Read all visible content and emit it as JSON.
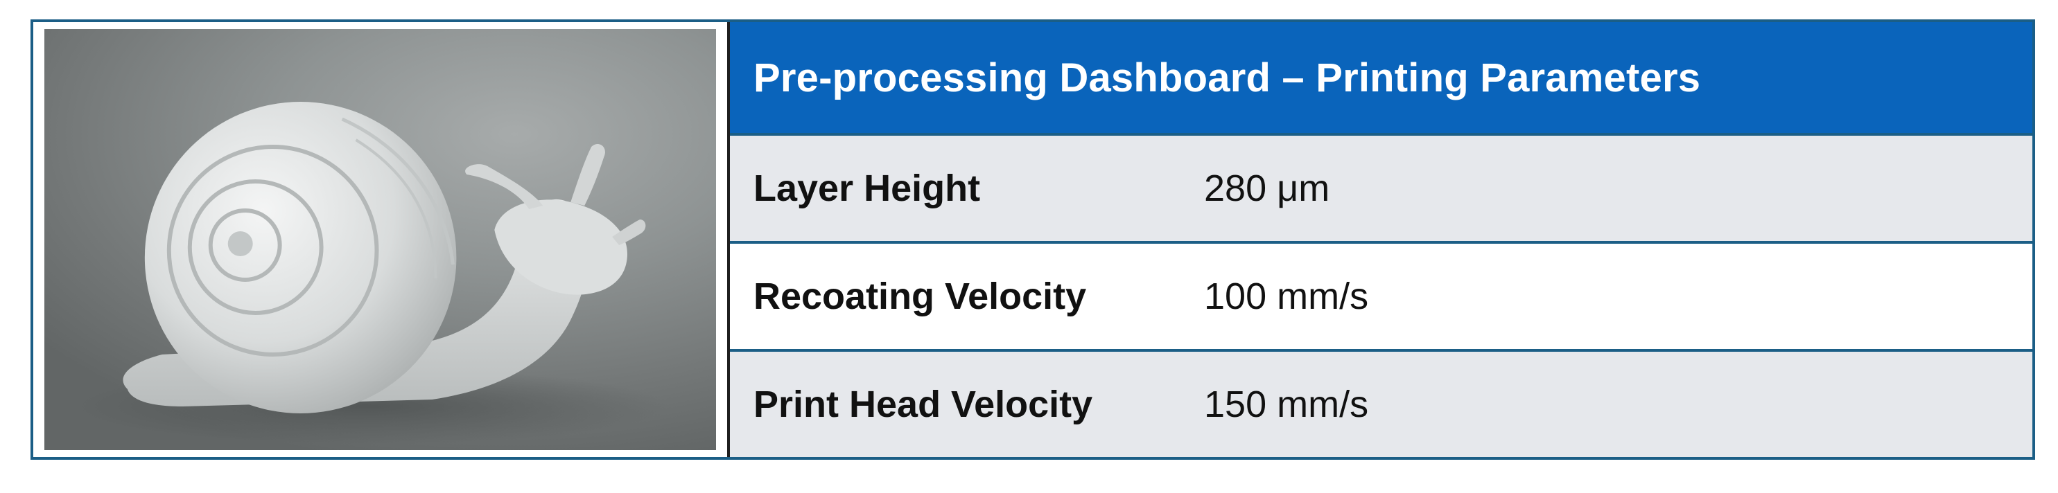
{
  "dashboard": {
    "title": "Pre-processing Dashboard – Printing Parameters",
    "image": {
      "subject": "snail-3d-print-icon"
    },
    "parameters": [
      {
        "label": "Layer Height",
        "value": "280 μm"
      },
      {
        "label": "Recoating Velocity",
        "value": "100 mm/s"
      },
      {
        "label": "Print Head Velocity",
        "value": "150 mm/s"
      }
    ]
  },
  "colors": {
    "header_bg": "#0a64bb",
    "border": "#1b5e86",
    "row_shade": "#e6e8ec"
  }
}
